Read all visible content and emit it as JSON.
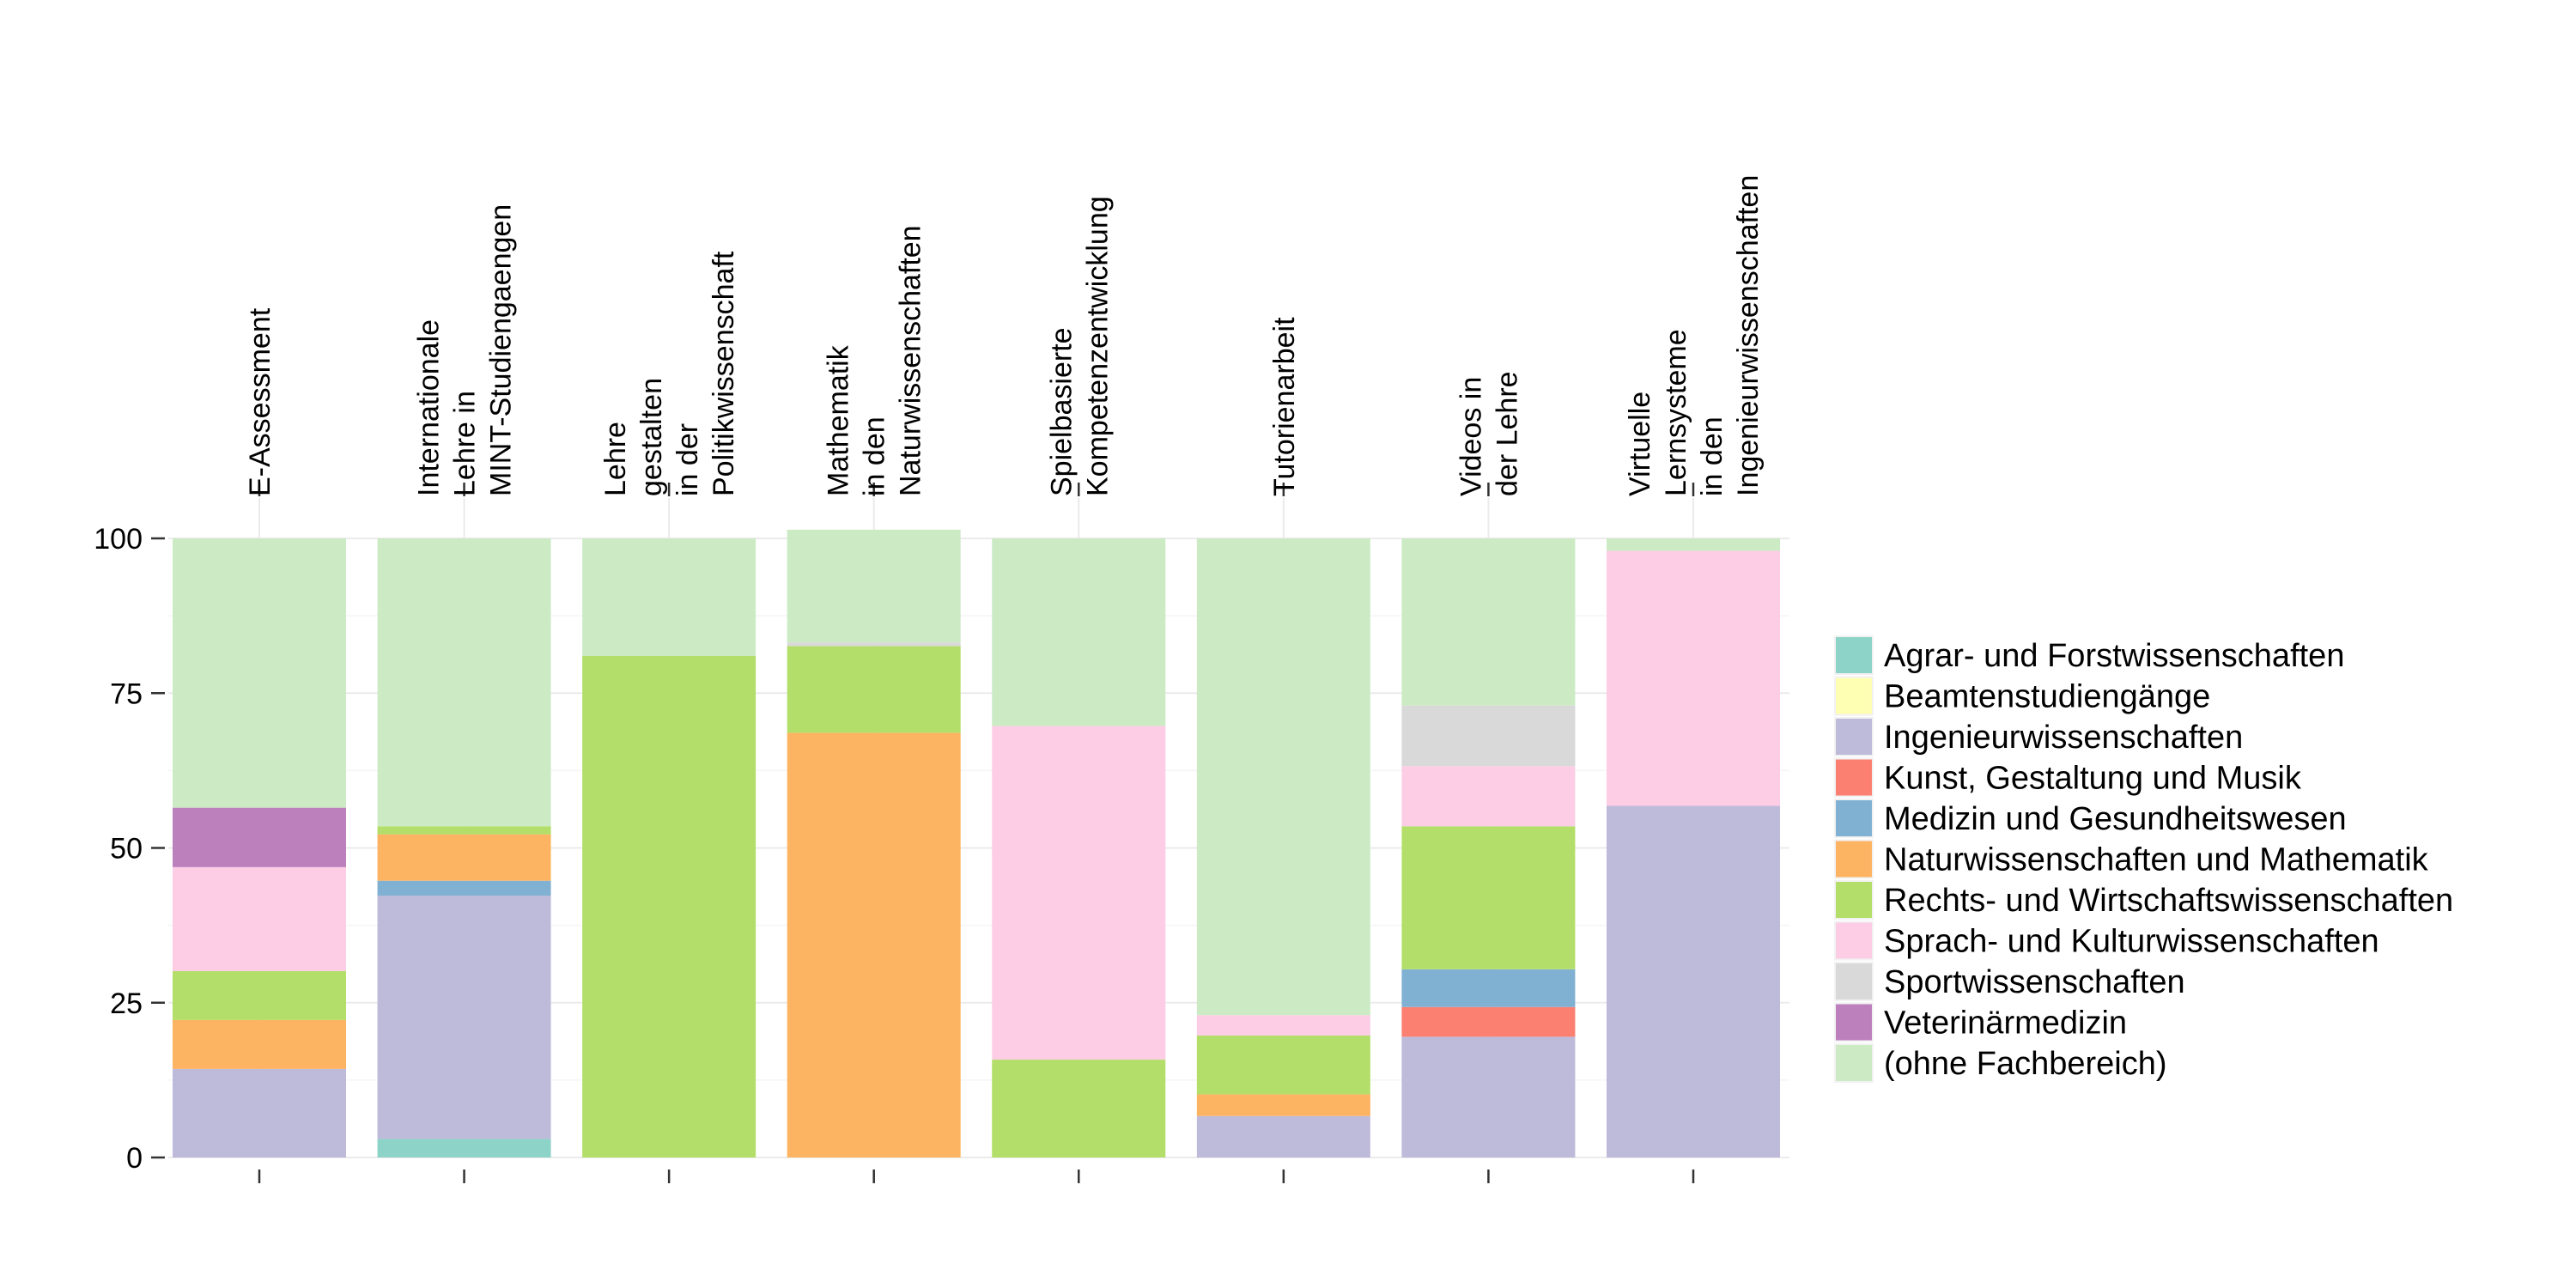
{
  "chart_data": {
    "type": "stacked-bar",
    "title": "",
    "xlabel": "",
    "ylabel": "",
    "ylim": [
      0,
      100
    ],
    "yticks": [
      0,
      25,
      50,
      75,
      100
    ],
    "grid": true,
    "legend_position": "right",
    "categories": [
      "E-Assessment",
      "Internationale\nLehre in\nMINT-Studiengaengen",
      "Lehre\ngestalten\nin der\nPolitikwissenschaft",
      "Mathematik\nin den\nNaturwissenschaften",
      "Spielbasierte\nKompetenzentwicklung",
      "Tutorienarbeit",
      "Videos in\nder Lehre",
      "Virtuelle\nLernsysteme\nin den\nIngenieurwissenschaften"
    ],
    "series": [
      {
        "name": "Agrar- und Forstwissenschaften",
        "color": "#8DD3C7",
        "values": [
          0,
          3,
          0,
          0,
          0,
          0,
          0,
          0
        ]
      },
      {
        "name": "Beamtenstudiengänge",
        "color": "#FFFFB3",
        "values": [
          0,
          0,
          0,
          0,
          0,
          0,
          0,
          0
        ]
      },
      {
        "name": "Ingenieurwissenschaften",
        "color": "#BEBADA",
        "values": [
          14.3,
          39.3,
          0,
          0,
          0,
          6.7,
          19.5,
          56.8
        ]
      },
      {
        "name": "Kunst, Gestaltung und Musik",
        "color": "#FB8072",
        "values": [
          0,
          0,
          0,
          0,
          0,
          0,
          4.8,
          0
        ]
      },
      {
        "name": "Medizin und Gesundheitswesen",
        "color": "#80B1D3",
        "values": [
          0,
          2.4,
          0,
          0,
          0,
          0,
          6.1,
          0
        ]
      },
      {
        "name": "Naturwissenschaften und Mathematik",
        "color": "#FDB462",
        "values": [
          7.9,
          7.5,
          0,
          68.6,
          0,
          3.5,
          0,
          0
        ]
      },
      {
        "name": "Rechts- und Wirtschaftswissenschaften",
        "color": "#B3DE69",
        "values": [
          7.9,
          1.3,
          81,
          14,
          15.8,
          9.5,
          23.1,
          0
        ]
      },
      {
        "name": "Sprach- und Kulturwissenschaften",
        "color": "#FCCDE5",
        "values": [
          16.8,
          0,
          0,
          0,
          53.9,
          3.3,
          9.7,
          41.2
        ]
      },
      {
        "name": "Sportwissenschaften",
        "color": "#D9D9D9",
        "values": [
          0,
          0,
          0,
          0.6,
          0,
          0,
          9.8,
          0
        ]
      },
      {
        "name": "Veterinärmedizin",
        "color": "#BC80BD",
        "values": [
          9.6,
          0,
          0,
          0,
          0,
          0,
          0,
          0
        ]
      },
      {
        "name": "(ohne Fachbereich)",
        "color": "#CCEBC5",
        "values": [
          43.5,
          46.5,
          19,
          18.2,
          30.3,
          77,
          27,
          2
        ]
      }
    ]
  }
}
